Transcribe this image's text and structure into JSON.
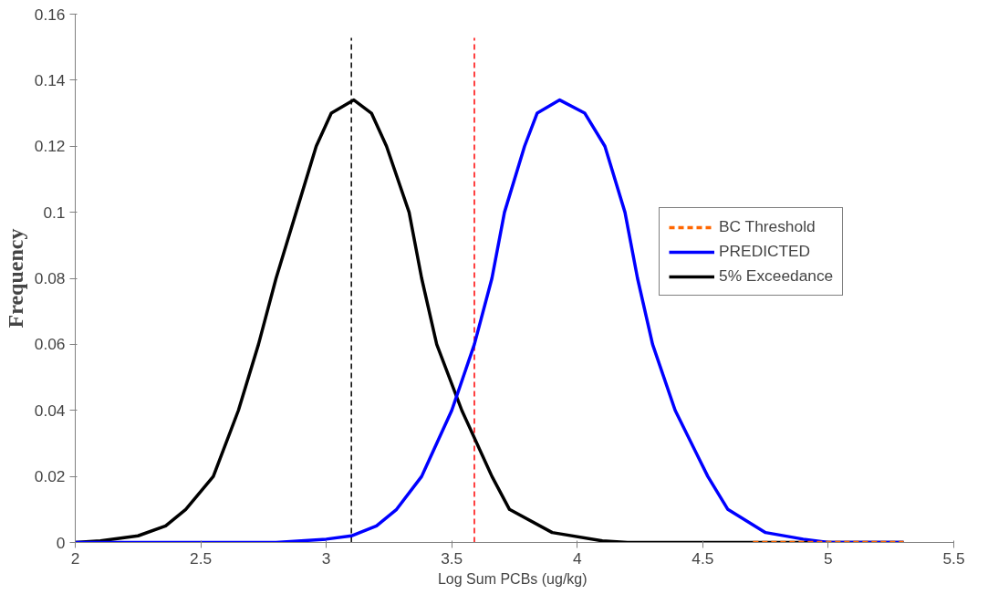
{
  "chart_data": {
    "type": "line",
    "xlabel": "Log Sum PCBs  (ug/kg)",
    "ylabel": "Frequency",
    "xlim": [
      2,
      5.5
    ],
    "xticks": [
      2,
      2.5,
      3,
      3.5,
      4,
      4.5,
      5,
      5.5
    ],
    "ylim": [
      0,
      0.16
    ],
    "yticks": [
      0,
      0.02,
      0.04,
      0.06,
      0.08,
      0.1,
      0.12,
      0.14,
      0.16
    ],
    "grid": false,
    "legend": "right",
    "marker": "none",
    "series": [
      {
        "name": "BC Threshold",
        "color": "#ff6600",
        "line_style": "dashed",
        "x": [
          4.7,
          5.3
        ],
        "values": [
          0,
          0
        ]
      },
      {
        "name": "PREDICTED",
        "color": "#0000ff",
        "line_style": "solid",
        "x": [
          2,
          2.8,
          3.0,
          3.1,
          3.2,
          3.28,
          3.38,
          3.5,
          3.59,
          3.66,
          3.71,
          3.79,
          3.84,
          3.93,
          4.03,
          4.11,
          4.19,
          4.24,
          4.3,
          4.39,
          4.52,
          4.6,
          4.75,
          4.9,
          5.0,
          5.3
        ],
        "values": [
          0,
          0,
          0.001,
          0.002,
          0.005,
          0.01,
          0.02,
          0.04,
          0.06,
          0.08,
          0.1,
          0.12,
          0.13,
          0.134,
          0.13,
          0.12,
          0.1,
          0.08,
          0.06,
          0.04,
          0.02,
          0.01,
          0.003,
          0.001,
          0,
          0
        ]
      },
      {
        "name": "5% Exceedance",
        "color": "#000000",
        "line_style": "solid",
        "x": [
          2,
          2.1,
          2.25,
          2.36,
          2.44,
          2.55,
          2.65,
          2.73,
          2.8,
          2.88,
          2.96,
          3.02,
          3.11,
          3.18,
          3.24,
          3.33,
          3.38,
          3.44,
          3.54,
          3.66,
          3.73,
          3.9,
          4.1,
          4.2,
          5.3
        ],
        "values": [
          0,
          0.0005,
          0.002,
          0.005,
          0.01,
          0.02,
          0.04,
          0.06,
          0.08,
          0.1,
          0.12,
          0.13,
          0.134,
          0.13,
          0.12,
          0.1,
          0.08,
          0.06,
          0.04,
          0.02,
          0.01,
          0.003,
          0.0005,
          0,
          0
        ]
      }
    ],
    "ref_lines": [
      {
        "axis": "x",
        "value": 3.1,
        "color": "#000000",
        "line_style": "dashed"
      },
      {
        "axis": "x",
        "value": 3.59,
        "color": "#ff0000",
        "line_style": "dashed"
      }
    ]
  }
}
